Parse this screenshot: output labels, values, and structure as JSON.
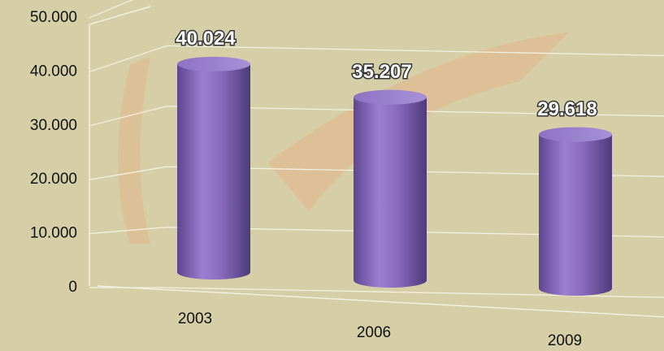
{
  "chart_data": {
    "type": "bar3d",
    "categories": [
      "2003",
      "2006",
      "2009"
    ],
    "values": [
      40024,
      35207,
      29618
    ],
    "value_labels": [
      "40.024",
      "35.207",
      "29.618"
    ],
    "color": "#8a6bbd",
    "ylim": [
      0,
      50000
    ],
    "yticks": [
      {
        "value": 0,
        "label": "0"
      },
      {
        "value": 10000,
        "label": "10.000"
      },
      {
        "value": 20000,
        "label": "20.000"
      },
      {
        "value": 30000,
        "label": "30.000"
      },
      {
        "value": 40000,
        "label": "40.000"
      },
      {
        "value": 50000,
        "label": "50.000"
      }
    ],
    "grid": true
  }
}
